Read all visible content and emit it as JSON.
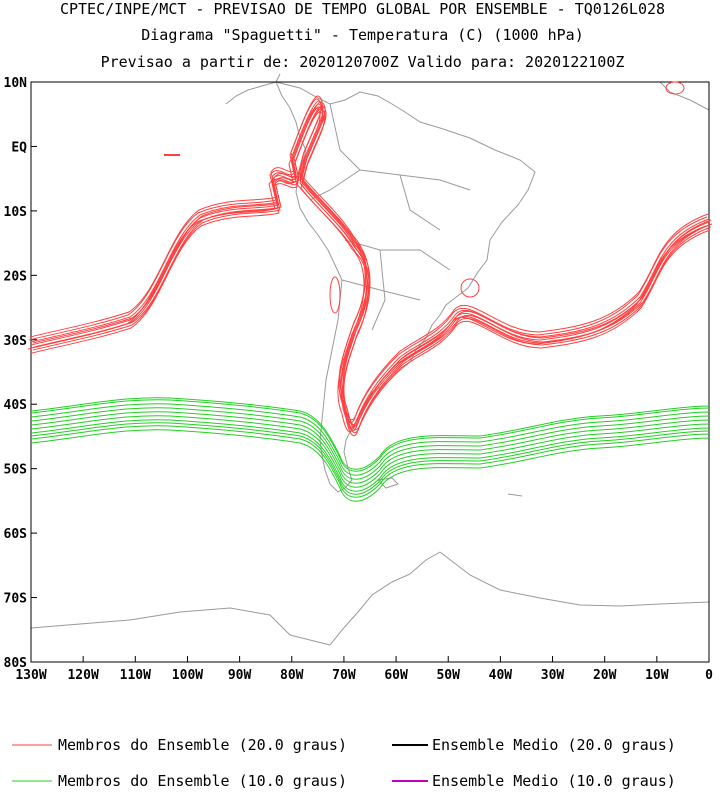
{
  "header": {
    "line1": "CPTEC/INPE/MCT - PREVISAO DE TEMPO GLOBAL POR ENSEMBLE - TQ0126L028",
    "line2": "Diagrama \"Spaguetti\" - Temperatura (C) (1000 hPa)",
    "line3": "Previsao a partir de: 2020120700Z  Valido para: 2020122100Z"
  },
  "axes": {
    "lat_labels": [
      "10N",
      "EQ",
      "10S",
      "20S",
      "30S",
      "40S",
      "50S",
      "60S",
      "70S",
      "80S"
    ],
    "lon_labels": [
      "130W",
      "120W",
      "110W",
      "100W",
      "90W",
      "80W",
      "70W",
      "60W",
      "50W",
      "40W",
      "30W",
      "20W",
      "10W",
      "0"
    ]
  },
  "legend": [
    {
      "label": "Membros do Ensemble (20.0 graus)",
      "color": "#ff4040"
    },
    {
      "label": "Ensemble Medio (20.0 graus)",
      "color": "#000000"
    },
    {
      "label": "Membros do Ensemble (10.0 graus)",
      "color": "#22d022"
    },
    {
      "label": "Ensemble Medio (10.0 graus)",
      "color": "#c000c0"
    }
  ],
  "colors": {
    "coast": "#9a9a9a",
    "red_members": "#ff4040",
    "green_members": "#22d022"
  }
}
